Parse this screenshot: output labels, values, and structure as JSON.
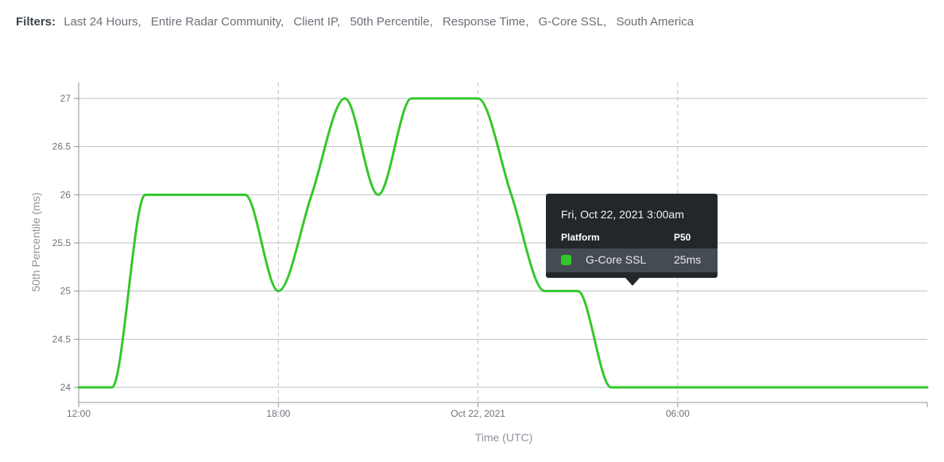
{
  "filters": {
    "label": "Filters:",
    "items": [
      "Last 24 Hours,",
      "Entire Radar Community,",
      "Client IP,",
      "50th Percentile,",
      "Response Time,",
      "G-Core SSL,",
      "South America"
    ]
  },
  "tooltip": {
    "date": "Fri, Oct 22, 2021 3:00am",
    "col_platform": "Platform",
    "col_p50": "P50",
    "row_name": "G-Core SSL",
    "row_value": "25ms"
  },
  "colors": {
    "series": "#33c82a",
    "grid": "#b9c0c7",
    "axis": "#8d949b"
  },
  "chart_data": {
    "type": "line",
    "title": "",
    "xlabel": "Time (UTC)",
    "ylabel": "50th Percentile (ms)",
    "ylim": [
      24,
      27
    ],
    "y_ticks": [
      24,
      24.5,
      25,
      25.5,
      26,
      26.5,
      27
    ],
    "y_tick_labels": [
      "24",
      "24.5",
      "25",
      "25.5",
      "26",
      "26.5",
      "27"
    ],
    "x_range_hours": [
      12,
      37.5
    ],
    "x_ticks": [
      {
        "hour": 12,
        "label": "12:00"
      },
      {
        "hour": 18,
        "label": "18:00"
      },
      {
        "hour": 24,
        "label": "Oct 22, 2021"
      },
      {
        "hour": 30,
        "label": "06:00"
      }
    ],
    "grid": true,
    "series": [
      {
        "name": "G-Core SSL",
        "x": [
          12,
          13,
          14,
          15,
          16,
          17,
          18,
          19,
          20,
          21,
          22,
          23,
          24,
          25,
          26,
          27,
          28,
          29,
          30,
          31,
          32,
          33,
          34,
          35,
          36,
          37,
          37.5
        ],
        "values": [
          24,
          24,
          26,
          26,
          26,
          26,
          25,
          26,
          27,
          26,
          27,
          27,
          27,
          26,
          25,
          25,
          24,
          24,
          24,
          24,
          24,
          24,
          24,
          24,
          24,
          24,
          24
        ]
      }
    ],
    "highlight": {
      "x": 27,
      "y": 25
    }
  }
}
